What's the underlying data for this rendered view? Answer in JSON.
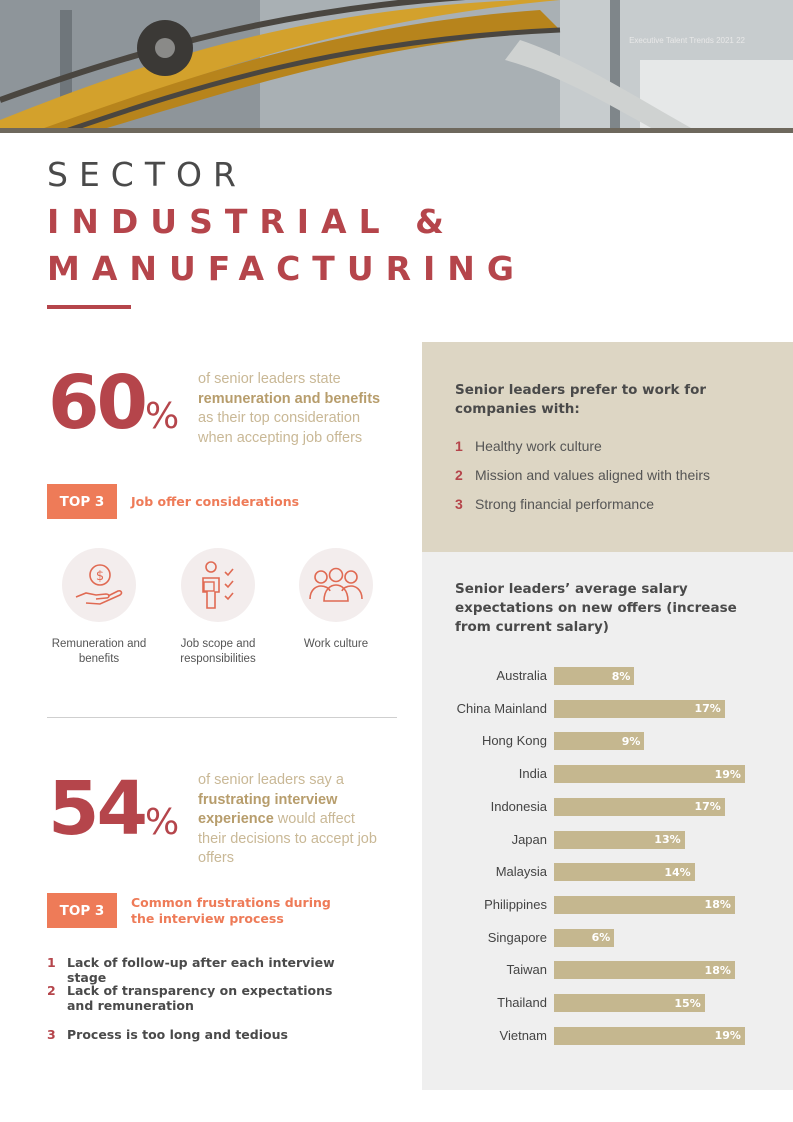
{
  "header": {
    "caption": "Executive Talent Trends 2021  22"
  },
  "title": {
    "prefix": "SECTOR",
    "line1": "INDUSTRIAL &",
    "line2": "MANUFACTURING"
  },
  "stat1": {
    "value": "60",
    "unit": "%",
    "text_before": "of senior leaders state ",
    "text_bold": "remuneration and benefits",
    "text_after": " as their top consideration when accepting job offers"
  },
  "considerations": {
    "badge": "TOP 3",
    "title": "Job offer considerations",
    "items": [
      {
        "label": "Remuneration and benefits",
        "icon": "hand-money-icon"
      },
      {
        "label": "Job scope and responsibilities",
        "icon": "person-checklist-icon"
      },
      {
        "label": "Work culture",
        "icon": "people-group-icon"
      }
    ]
  },
  "stat2": {
    "value": "54",
    "unit": "%",
    "text_before": "of senior leaders say a ",
    "text_bold": "frustrating interview experience",
    "text_after": " would affect their decisions to accept job offers"
  },
  "frustrations": {
    "badge": "TOP 3",
    "title": "Common frustrations during the interview process",
    "items": [
      {
        "num": "1",
        "text": "Lack of follow-up after each interview stage"
      },
      {
        "num": "2",
        "text": "Lack of transparency on expectations and remuneration"
      },
      {
        "num": "3",
        "text": "Process is too long and tedious"
      }
    ]
  },
  "preferences": {
    "title": "Senior leaders prefer to work for companies with:",
    "items": [
      {
        "num": "1",
        "text": "Healthy work culture"
      },
      {
        "num": "2",
        "text": "Mission and values aligned with theirs"
      },
      {
        "num": "3",
        "text": "Strong financial performance"
      }
    ]
  },
  "colors": {
    "accent_red": "#b5454b",
    "accent_orange": "#ee7b58",
    "bar": "#c5b78f",
    "beige_panel": "#ddd6c4"
  },
  "chart_data": {
    "type": "bar",
    "orientation": "horizontal",
    "title": "Senior leaders’ average salary expectations on new offers (increase from current salary)",
    "categories": [
      "Australia",
      "China Mainland",
      "Hong Kong",
      "India",
      "Indonesia",
      "Japan",
      "Malaysia",
      "Philippines",
      "Singapore",
      "Taiwan",
      "Thailand",
      "Vietnam"
    ],
    "values": [
      8,
      17,
      9,
      19,
      17,
      13,
      14,
      18,
      6,
      18,
      15,
      19
    ],
    "value_labels": [
      "8%",
      "17%",
      "9%",
      "19%",
      "17%",
      "13%",
      "14%",
      "18%",
      "6%",
      "18%",
      "15%",
      "19%"
    ],
    "unit": "%",
    "xlim": [
      0,
      20
    ],
    "grid": false
  }
}
